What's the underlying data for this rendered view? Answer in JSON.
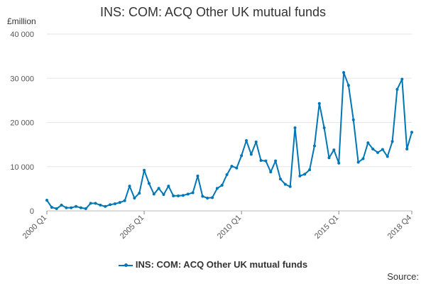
{
  "colors": {
    "series": "#0076b6",
    "grid": "#e6e6e6",
    "text": "#333333"
  },
  "footer": {
    "source_label": "Source:"
  },
  "chart_data": {
    "type": "line",
    "title": "INS: COM: ACQ Other UK mutual funds",
    "ylabel": "£million",
    "ylim": [
      0,
      40000
    ],
    "yticks": [
      0,
      10000,
      20000,
      30000,
      40000
    ],
    "ytick_labels": [
      "0",
      "10 000",
      "20 000",
      "30 000",
      "40 000"
    ],
    "xtick_labels": [
      "2000 Q1",
      "2005 Q1",
      "2010 Q1",
      "2015 Q1",
      "2018 Q4"
    ],
    "grid": true,
    "legend_position": "bottom",
    "x": [
      "2000 Q1",
      "2000 Q2",
      "2000 Q3",
      "2000 Q4",
      "2001 Q1",
      "2001 Q2",
      "2001 Q3",
      "2001 Q4",
      "2002 Q1",
      "2002 Q2",
      "2002 Q3",
      "2002 Q4",
      "2003 Q1",
      "2003 Q2",
      "2003 Q3",
      "2003 Q4",
      "2004 Q1",
      "2004 Q2",
      "2004 Q3",
      "2004 Q4",
      "2005 Q1",
      "2005 Q2",
      "2005 Q3",
      "2005 Q4",
      "2006 Q1",
      "2006 Q2",
      "2006 Q3",
      "2006 Q4",
      "2007 Q1",
      "2007 Q2",
      "2007 Q3",
      "2007 Q4",
      "2008 Q1",
      "2008 Q2",
      "2008 Q3",
      "2008 Q4",
      "2009 Q1",
      "2009 Q2",
      "2009 Q3",
      "2009 Q4",
      "2010 Q1",
      "2010 Q2",
      "2010 Q3",
      "2010 Q4",
      "2011 Q1",
      "2011 Q2",
      "2011 Q3",
      "2011 Q4",
      "2012 Q1",
      "2012 Q2",
      "2012 Q3",
      "2012 Q4",
      "2013 Q1",
      "2013 Q2",
      "2013 Q3",
      "2013 Q4",
      "2014 Q1",
      "2014 Q2",
      "2014 Q3",
      "2014 Q4",
      "2015 Q1",
      "2015 Q2",
      "2015 Q3",
      "2015 Q4",
      "2016 Q1",
      "2016 Q2",
      "2016 Q3",
      "2016 Q4",
      "2017 Q1",
      "2017 Q2",
      "2017 Q3",
      "2017 Q4",
      "2018 Q1",
      "2018 Q2",
      "2018 Q3",
      "2018 Q4"
    ],
    "series": [
      {
        "name": "INS: COM: ACQ Other UK mutual funds",
        "values": [
          2400,
          800,
          500,
          1300,
          700,
          700,
          1000,
          700,
          500,
          1700,
          1700,
          1300,
          1000,
          1400,
          1600,
          1900,
          2300,
          5600,
          2900,
          4000,
          9200,
          6200,
          3800,
          5100,
          3700,
          5600,
          3400,
          3400,
          3500,
          3800,
          4100,
          7900,
          3300,
          2900,
          3000,
          5100,
          5800,
          8200,
          10100,
          9700,
          12500,
          15900,
          12800,
          15600,
          11400,
          11300,
          8800,
          11300,
          7200,
          6000,
          5500,
          18800,
          7900,
          8300,
          9300,
          14700,
          24300,
          18800,
          12000,
          13800,
          10800,
          31300,
          28400,
          20600,
          11000,
          11800,
          15400,
          14000,
          13200,
          13900,
          12300,
          15700,
          27500,
          29800,
          14000,
          17800
        ]
      }
    ]
  }
}
